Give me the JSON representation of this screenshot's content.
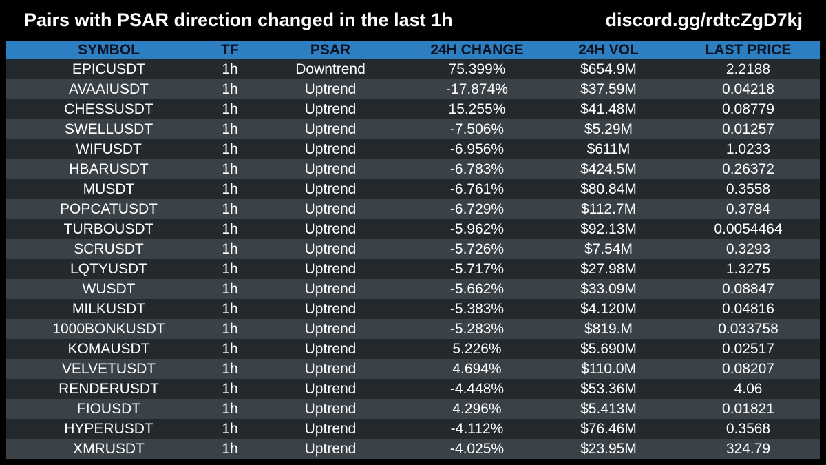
{
  "header": {
    "title": "Pairs with PSAR direction changed in the last 1h",
    "discord": "discord.gg/rdtcZgD7kj"
  },
  "colors": {
    "background": "#000000",
    "header_row": "#2e7ec2",
    "row_odd": "#24292e",
    "row_even": "#3b4247"
  },
  "table": {
    "columns": [
      "SYMBOL",
      "TF",
      "PSAR",
      "24H CHANGE",
      "24H VOL",
      "LAST PRICE"
    ],
    "rows": [
      [
        "EPICUSDT",
        "1h",
        "Downtrend",
        "75.399%",
        "$654.9M",
        "2.2188"
      ],
      [
        "AVAAIUSDT",
        "1h",
        "Uptrend",
        "-17.874%",
        "$37.59M",
        "0.04218"
      ],
      [
        "CHESSUSDT",
        "1h",
        "Uptrend",
        "15.255%",
        "$41.48M",
        "0.08779"
      ],
      [
        "SWELLUSDT",
        "1h",
        "Uptrend",
        "-7.506%",
        "$5.29M",
        "0.01257"
      ],
      [
        "WIFUSDT",
        "1h",
        "Uptrend",
        "-6.956%",
        "$611M",
        "1.0233"
      ],
      [
        "HBARUSDT",
        "1h",
        "Uptrend",
        "-6.783%",
        "$424.5M",
        "0.26372"
      ],
      [
        "MUSDT",
        "1h",
        "Uptrend",
        "-6.761%",
        "$80.84M",
        "0.3558"
      ],
      [
        "POPCATUSDT",
        "1h",
        "Uptrend",
        "-6.729%",
        "$112.7M",
        "0.3784"
      ],
      [
        "TURBOUSDT",
        "1h",
        "Uptrend",
        "-5.962%",
        "$92.13M",
        "0.0054464"
      ],
      [
        "SCRUSDT",
        "1h",
        "Uptrend",
        "-5.726%",
        "$7.54M",
        "0.3293"
      ],
      [
        "LQTYUSDT",
        "1h",
        "Uptrend",
        "-5.717%",
        "$27.98M",
        "1.3275"
      ],
      [
        "WUSDT",
        "1h",
        "Uptrend",
        "-5.662%",
        "$33.09M",
        "0.08847"
      ],
      [
        "MILKUSDT",
        "1h",
        "Uptrend",
        "-5.383%",
        "$4.120M",
        "0.04816"
      ],
      [
        "1000BONKUSDT",
        "1h",
        "Uptrend",
        "-5.283%",
        "$819.M",
        "0.033758"
      ],
      [
        "KOMAUSDT",
        "1h",
        "Uptrend",
        "5.226%",
        "$5.690M",
        "0.02517"
      ],
      [
        "VELVETUSDT",
        "1h",
        "Uptrend",
        "4.694%",
        "$110.0M",
        "0.08207"
      ],
      [
        "RENDERUSDT",
        "1h",
        "Uptrend",
        "-4.448%",
        "$53.36M",
        "4.06"
      ],
      [
        "FIOUSDT",
        "1h",
        "Uptrend",
        "4.296%",
        "$5.413M",
        "0.01821"
      ],
      [
        "HYPERUSDT",
        "1h",
        "Uptrend",
        "-4.112%",
        "$76.46M",
        "0.3568"
      ],
      [
        "XMRUSDT",
        "1h",
        "Uptrend",
        "-4.025%",
        "$23.95M",
        "324.79"
      ]
    ]
  }
}
